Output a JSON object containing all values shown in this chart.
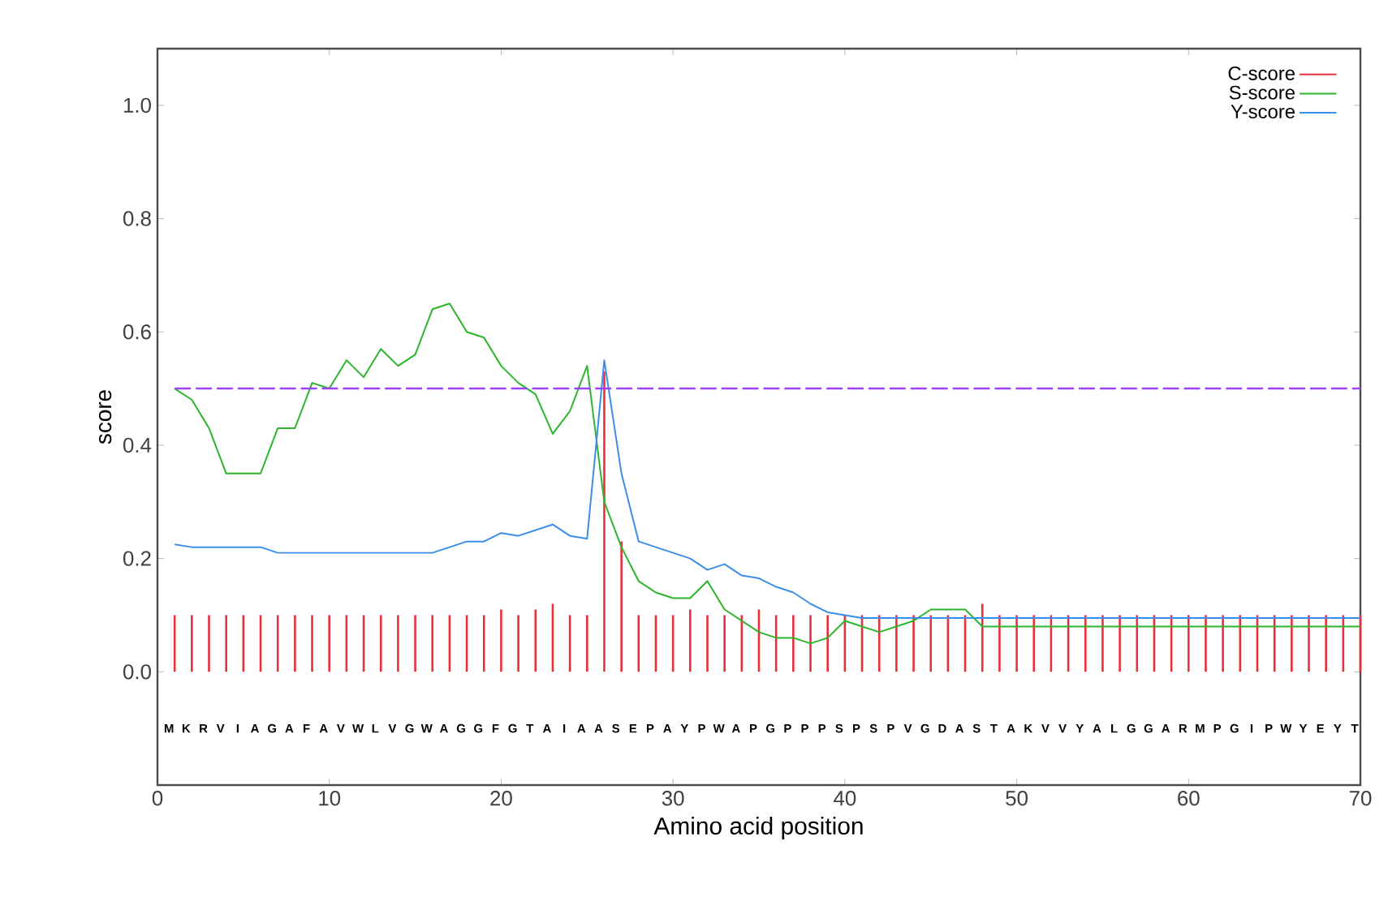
{
  "chart_data": {
    "type": "line",
    "xlabel": "Amino acid position",
    "ylabel": "score",
    "xlim": [
      0,
      70
    ],
    "ylim": [
      -0.2,
      1.1
    ],
    "xticks": [
      0,
      10,
      20,
      30,
      40,
      50,
      60,
      70
    ],
    "yticks": [
      {
        "value": 0,
        "label": "0.0"
      },
      {
        "value": 0.2,
        "label": "0.2"
      },
      {
        "value": 0.4,
        "label": "0.4"
      },
      {
        "value": 0.6,
        "label": "0.6"
      },
      {
        "value": 0.8,
        "label": "0.8"
      },
      {
        "value": 1.0,
        "label": "1.0"
      }
    ],
    "legend": "top right",
    "x": [
      1,
      2,
      3,
      4,
      5,
      6,
      7,
      8,
      9,
      10,
      11,
      12,
      13,
      14,
      15,
      16,
      17,
      18,
      19,
      20,
      21,
      22,
      23,
      24,
      25,
      26,
      27,
      28,
      29,
      30,
      31,
      32,
      33,
      34,
      35,
      36,
      37,
      38,
      39,
      40,
      41,
      42,
      43,
      44,
      45,
      46,
      47,
      48,
      49,
      50,
      51,
      52,
      53,
      54,
      55,
      56,
      57,
      58,
      59,
      60,
      61,
      62,
      63,
      64,
      65,
      66,
      67,
      68,
      69,
      70
    ],
    "series": [
      {
        "name": "C-score",
        "type": "bar",
        "color": "#e8303a",
        "values": [
          0.1,
          0.1,
          0.1,
          0.1,
          0.1,
          0.1,
          0.1,
          0.1,
          0.1,
          0.1,
          0.1,
          0.1,
          0.1,
          0.1,
          0.1,
          0.1,
          0.1,
          0.1,
          0.1,
          0.11,
          0.1,
          0.11,
          0.12,
          0.1,
          0.1,
          0.53,
          0.23,
          0.1,
          0.1,
          0.1,
          0.11,
          0.1,
          0.1,
          0.1,
          0.11,
          0.1,
          0.1,
          0.1,
          0.1,
          0.1,
          0.1,
          0.1,
          0.1,
          0.1,
          0.1,
          0.1,
          0.1,
          0.12,
          0.1,
          0.1,
          0.1,
          0.1,
          0.1,
          0.1,
          0.1,
          0.1,
          0.1,
          0.1,
          0.1,
          0.1,
          0.1,
          0.1,
          0.1,
          0.1,
          0.1,
          0.1,
          0.1,
          0.1,
          0.1,
          0.1
        ]
      },
      {
        "name": "S-score",
        "color": "#2bb52b",
        "values": [
          0.5,
          0.48,
          0.43,
          0.35,
          0.35,
          0.35,
          0.43,
          0.43,
          0.51,
          0.5,
          0.55,
          0.52,
          0.57,
          0.54,
          0.56,
          0.64,
          0.65,
          0.6,
          0.59,
          0.54,
          0.51,
          0.49,
          0.42,
          0.46,
          0.54,
          0.3,
          0.22,
          0.16,
          0.14,
          0.13,
          0.13,
          0.16,
          0.11,
          0.09,
          0.07,
          0.06,
          0.06,
          0.05,
          0.06,
          0.09,
          0.08,
          0.07,
          0.08,
          0.09,
          0.11,
          0.11,
          0.11,
          0.08,
          0.08,
          0.08,
          0.08,
          0.08,
          0.08,
          0.08,
          0.08,
          0.08,
          0.08,
          0.08,
          0.08,
          0.08,
          0.08,
          0.08,
          0.08,
          0.08,
          0.08,
          0.08,
          0.08,
          0.08,
          0.08,
          0.08
        ]
      },
      {
        "name": "Y-score",
        "color": "#3a8de8",
        "values": [
          0.225,
          0.22,
          0.22,
          0.22,
          0.22,
          0.22,
          0.21,
          0.21,
          0.21,
          0.21,
          0.21,
          0.21,
          0.21,
          0.21,
          0.21,
          0.21,
          0.22,
          0.23,
          0.23,
          0.245,
          0.24,
          0.25,
          0.26,
          0.24,
          0.235,
          0.55,
          0.35,
          0.23,
          0.22,
          0.21,
          0.2,
          0.18,
          0.19,
          0.17,
          0.165,
          0.15,
          0.14,
          0.12,
          0.105,
          0.1,
          0.095,
          0.095,
          0.095,
          0.095,
          0.095,
          0.095,
          0.095,
          0.095,
          0.095,
          0.095,
          0.095,
          0.095,
          0.095,
          0.095,
          0.095,
          0.095,
          0.095,
          0.095,
          0.095,
          0.095,
          0.095,
          0.095,
          0.095,
          0.095,
          0.095,
          0.095,
          0.095,
          0.095,
          0.095,
          0.095
        ]
      }
    ],
    "ref_lines": [
      {
        "axis": "y",
        "value": 0.5,
        "color": "#a040ff",
        "line_style": "dashed"
      }
    ],
    "annotations": [
      "M",
      "K",
      "R",
      "V",
      "I",
      "A",
      "G",
      "A",
      "F",
      "A",
      "V",
      "W",
      "L",
      "V",
      "G",
      "W",
      "A",
      "G",
      "G",
      "F",
      "G",
      "T",
      "A",
      "I",
      "A",
      "A",
      "S",
      "E",
      "P",
      "A",
      "Y",
      "P",
      "W",
      "A",
      "P",
      "G",
      "P",
      "P",
      "P",
      "S",
      "P",
      "S",
      "P",
      "V",
      "G",
      "D",
      "A",
      "S",
      "T",
      "A",
      "K",
      "V",
      "V",
      "Y",
      "A",
      "L",
      "G",
      "G",
      "A",
      "R",
      "M",
      "P",
      "G",
      "I",
      "P",
      "W",
      "Y",
      "E",
      "Y",
      "T"
    ]
  }
}
